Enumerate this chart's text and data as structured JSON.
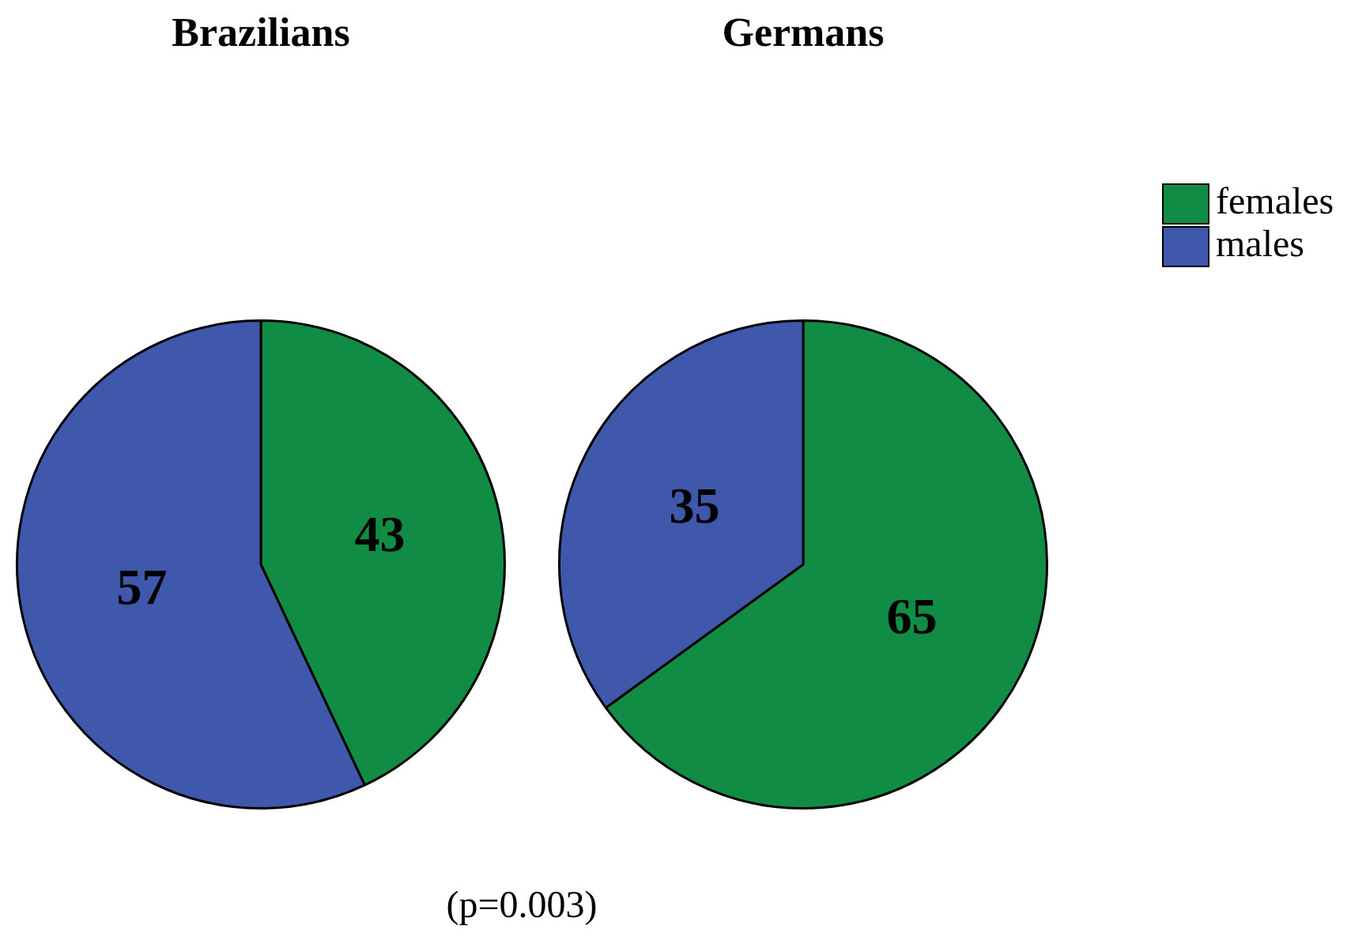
{
  "chart_data": [
    {
      "type": "pie",
      "title": "Brazilians",
      "categories": [
        null,
        null
      ],
      "values": [
        43,
        57
      ],
      "colors": [
        "#108c44",
        "#3f58ac"
      ],
      "data_labels": true,
      "annotations": [
        "(p=0.003)"
      ]
    },
    {
      "type": "pie",
      "title": "Germans",
      "categories": [
        "females",
        "males"
      ],
      "values": [
        65,
        35
      ],
      "colors": [
        "#108c44",
        "#3f58ac"
      ],
      "data_labels": true,
      "legend": "top right"
    }
  ]
}
